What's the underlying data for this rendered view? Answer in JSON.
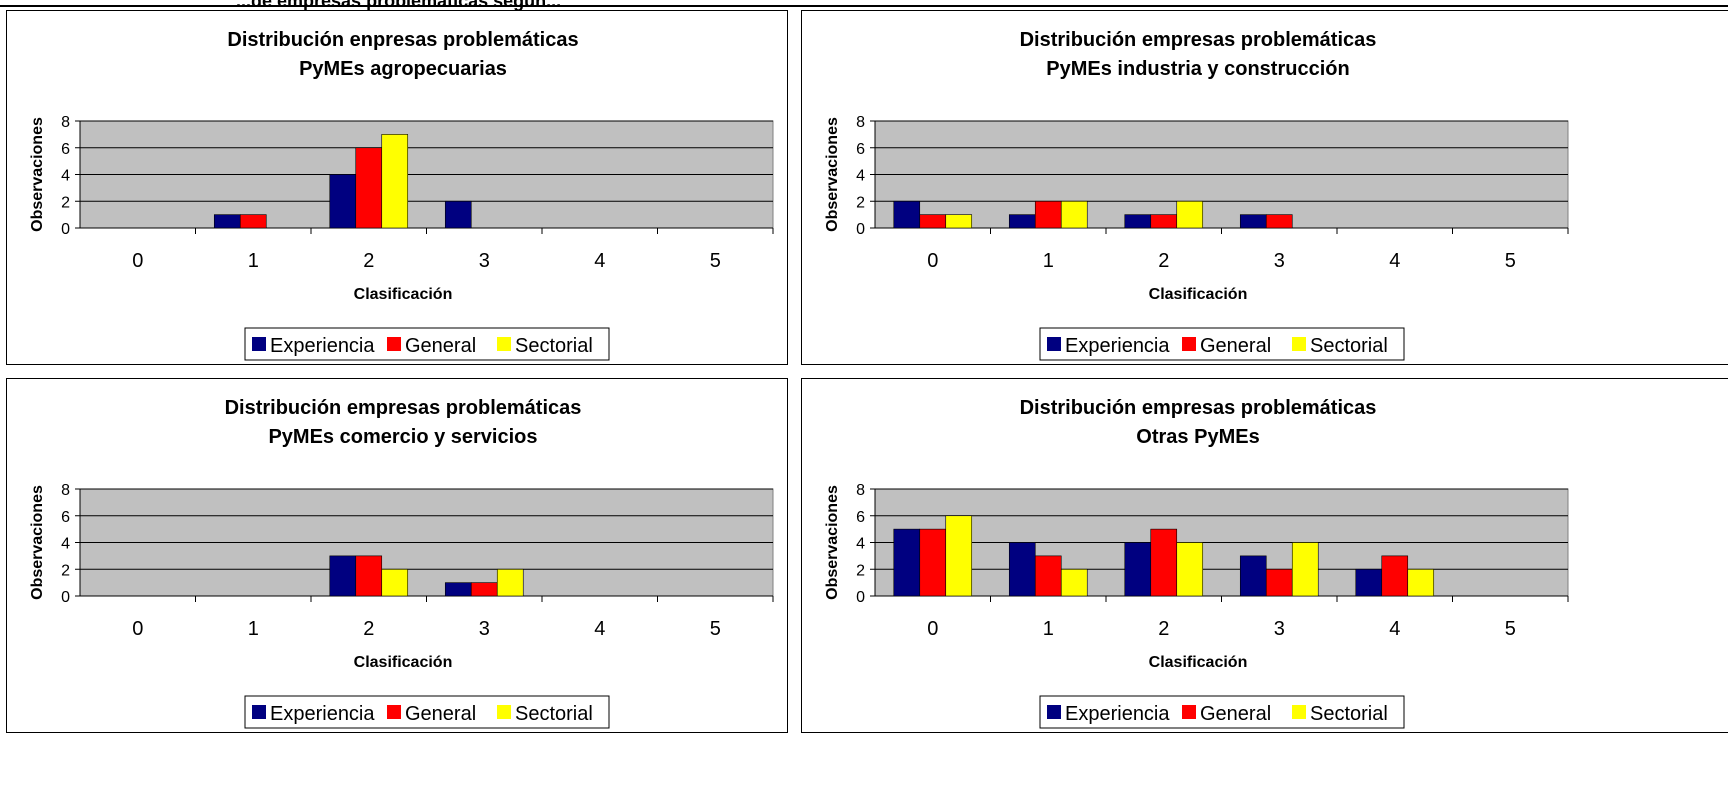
{
  "page": {
    "top_text": "...de empresas problemáticas según..."
  },
  "colors": {
    "Experiencia": "#000080",
    "General": "#ff0000",
    "Sectorial": "#ffff00",
    "plot_bg": "#c0c0c0"
  },
  "chart_data": [
    {
      "type": "bar",
      "title": "Distribución enpresas problemáticas",
      "subtitle": "PyMEs agropecuarias",
      "xlabel": "Clasificación",
      "ylabel": "Observaciones",
      "ylim": [
        0,
        8
      ],
      "yticks": [
        "0",
        "2",
        "4",
        "6",
        "8"
      ],
      "categories": [
        "0",
        "1",
        "2",
        "3",
        "4",
        "5"
      ],
      "grid": true,
      "legend": "bottom",
      "series": [
        {
          "name": "Experiencia",
          "values": [
            0,
            1,
            4,
            2,
            0,
            0
          ]
        },
        {
          "name": "General",
          "values": [
            0,
            1,
            6,
            0,
            0,
            0
          ]
        },
        {
          "name": "Sectorial",
          "values": [
            0,
            0,
            7,
            0,
            0,
            0
          ]
        }
      ]
    },
    {
      "type": "bar",
      "title": "Distribución empresas problemáticas",
      "subtitle": "PyMEs industria y construcción",
      "xlabel": "Clasificación",
      "ylabel": "Observaciones",
      "ylim": [
        0,
        8
      ],
      "yticks": [
        "0",
        "2",
        "4",
        "6",
        "8"
      ],
      "categories": [
        "0",
        "1",
        "2",
        "3",
        "4",
        "5"
      ],
      "grid": true,
      "legend": "bottom",
      "series": [
        {
          "name": "Experiencia",
          "values": [
            2,
            1,
            1,
            1,
            0,
            0
          ]
        },
        {
          "name": "General",
          "values": [
            1,
            2,
            1,
            1,
            0,
            0
          ]
        },
        {
          "name": "Sectorial",
          "values": [
            1,
            2,
            2,
            0,
            0,
            0
          ]
        }
      ]
    },
    {
      "type": "bar",
      "title": "Distribución empresas problemáticas",
      "subtitle": "PyMEs comercio y servicios",
      "xlabel": "Clasificación",
      "ylabel": "Observaciones",
      "ylim": [
        0,
        8
      ],
      "yticks": [
        "0",
        "2",
        "4",
        "6",
        "8"
      ],
      "categories": [
        "0",
        "1",
        "2",
        "3",
        "4",
        "5"
      ],
      "grid": true,
      "legend": "bottom",
      "series": [
        {
          "name": "Experiencia",
          "values": [
            0,
            0,
            3,
            1,
            0,
            0
          ]
        },
        {
          "name": "General",
          "values": [
            0,
            0,
            3,
            1,
            0,
            0
          ]
        },
        {
          "name": "Sectorial",
          "values": [
            0,
            0,
            2,
            2,
            0,
            0
          ]
        }
      ]
    },
    {
      "type": "bar",
      "title": "Distribución empresas problemáticas",
      "subtitle": "Otras PyMEs",
      "xlabel": "Clasificación",
      "ylabel": "Observaciones",
      "ylim": [
        0,
        8
      ],
      "yticks": [
        "0",
        "2",
        "4",
        "6",
        "8"
      ],
      "categories": [
        "0",
        "1",
        "2",
        "3",
        "4",
        "5"
      ],
      "grid": true,
      "legend": "bottom",
      "series": [
        {
          "name": "Experiencia",
          "values": [
            5,
            4,
            4,
            3,
            2,
            0
          ]
        },
        {
          "name": "General",
          "values": [
            5,
            3,
            5,
            2,
            3,
            0
          ]
        },
        {
          "name": "Sectorial",
          "values": [
            6,
            2,
            4,
            4,
            2,
            0
          ]
        }
      ]
    }
  ]
}
